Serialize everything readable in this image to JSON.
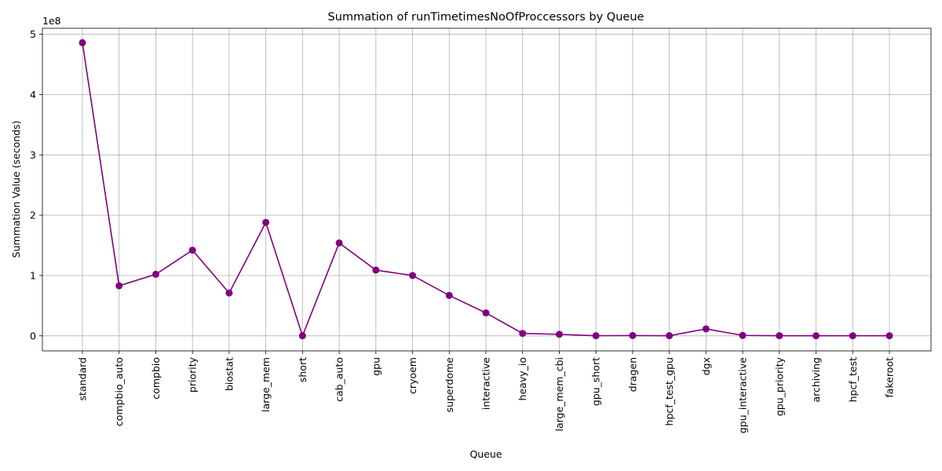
{
  "chart_data": {
    "type": "line",
    "title": "Summation of runTimetimesNoOfProccessors by Queue",
    "xlabel": "Queue",
    "ylabel": "Summation Value (seconds)",
    "y_offset_text": "1e8",
    "categories": [
      "standard",
      "compbio_auto",
      "compbio",
      "priority",
      "biostat",
      "large_mem",
      "short",
      "cab_auto",
      "gpu",
      "cryoem",
      "superdome",
      "interactive",
      "heavy_io",
      "large_mem_cbi",
      "gpu_short",
      "dragen",
      "hpcf_test_gpu",
      "dgx",
      "gpu_interactive",
      "gpu_priority",
      "archiving",
      "hpcf_test",
      "fakeroot"
    ],
    "series": [
      {
        "values": [
          486000000,
          83000000,
          102000000,
          142000000,
          71000000,
          188000000,
          0,
          154000000,
          109000000,
          100000000,
          67000000,
          38000000,
          4000000,
          2500000,
          200000,
          500000,
          200000,
          11500000,
          700000,
          200000,
          100000,
          100000,
          100000
        ]
      }
    ],
    "ylim": [
      -25000000,
      510000000
    ],
    "y_ticks": [
      0,
      100000000,
      200000000,
      300000000,
      400000000,
      500000000
    ],
    "y_tick_labels": [
      "0",
      "1",
      "2",
      "3",
      "4",
      "5"
    ],
    "grid": true,
    "line_color": "#800080",
    "marker": "circle"
  }
}
